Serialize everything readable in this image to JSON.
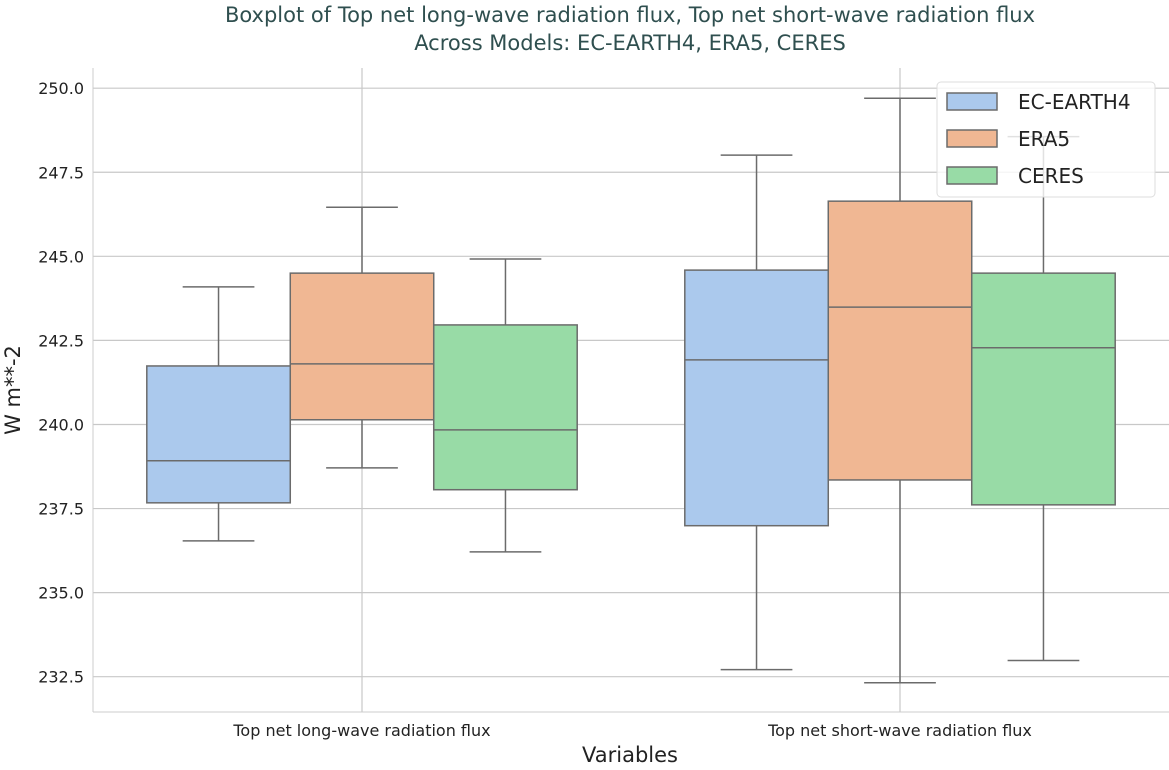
{
  "chart_data": {
    "type": "box",
    "title_line1": "Boxplot of Top net long-wave radiation flux, Top net short-wave radiation flux",
    "title_line2": "Across Models: EC-EARTH4, ERA5, CERES",
    "xlabel": "Variables",
    "ylabel": "W m**-2",
    "ylim": [
      231.45,
      250.6
    ],
    "yticks": [
      232.5,
      235.0,
      237.5,
      240.0,
      242.5,
      245.0,
      247.5,
      250.0
    ],
    "ytick_labels": [
      "232.5",
      "235.0",
      "237.5",
      "240.0",
      "242.5",
      "245.0",
      "247.5",
      "250.0"
    ],
    "categories": [
      "Top net long-wave radiation flux",
      "Top net short-wave radiation flux"
    ],
    "grid": true,
    "legend_position": "top-right",
    "series": [
      {
        "name": "EC-EARTH4",
        "color": "#abc9ed",
        "boxes": [
          {
            "whislo": 236.54,
            "q1": 237.67,
            "med": 238.92,
            "q3": 241.74,
            "whishi": 244.09
          },
          {
            "whislo": 232.71,
            "q1": 236.99,
            "med": 241.92,
            "q3": 244.59,
            "whishi": 248.01
          }
        ]
      },
      {
        "name": "ERA5",
        "color": "#f0b793",
        "boxes": [
          {
            "whislo": 238.71,
            "q1": 240.14,
            "med": 241.8,
            "q3": 244.5,
            "whishi": 246.46
          },
          {
            "whislo": 232.32,
            "q1": 238.35,
            "med": 243.49,
            "q3": 246.64,
            "whishi": 249.7
          }
        ]
      },
      {
        "name": "CERES",
        "color": "#98dba6",
        "boxes": [
          {
            "whislo": 236.21,
            "q1": 238.06,
            "med": 239.84,
            "q3": 242.96,
            "whishi": 244.92
          },
          {
            "whislo": 232.98,
            "q1": 237.61,
            "med": 242.28,
            "q3": 244.5,
            "whishi": 248.56
          }
        ]
      }
    ]
  }
}
